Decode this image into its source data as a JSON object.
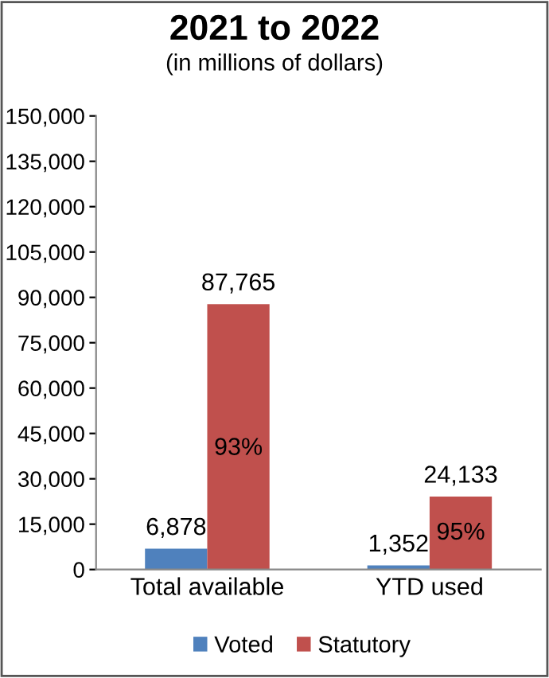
{
  "chart_data": {
    "type": "bar",
    "title": "2021 to 2022",
    "subtitle": "(in millions of dollars)",
    "categories": [
      "Total available",
      "YTD used"
    ],
    "series": [
      {
        "name": "Voted",
        "color": "#4f81bd",
        "values": [
          6878,
          1352
        ],
        "value_labels": [
          "6,878",
          "1,352"
        ]
      },
      {
        "name": "Statutory",
        "color": "#c0504d",
        "values": [
          87765,
          24133
        ],
        "value_labels": [
          "87,765",
          "24,133"
        ]
      }
    ],
    "annotations": [
      {
        "text": "93%",
        "x": "Total available",
        "y": 40000
      },
      {
        "text": "95%",
        "x": "YTD used",
        "y": 12000
      }
    ],
    "ylim": [
      0,
      150000
    ],
    "yticks": [
      {
        "value": 0,
        "label": "0"
      },
      {
        "value": 15000,
        "label": "15,000"
      },
      {
        "value": 30000,
        "label": "30,000"
      },
      {
        "value": 45000,
        "label": "45,000"
      },
      {
        "value": 60000,
        "label": "60,000"
      },
      {
        "value": 75000,
        "label": "75,000"
      },
      {
        "value": 90000,
        "label": "90,000"
      },
      {
        "value": 105000,
        "label": "105,000"
      },
      {
        "value": 120000,
        "label": "120,000"
      },
      {
        "value": 135000,
        "label": "135,000"
      },
      {
        "value": 150000,
        "label": "150,000"
      }
    ],
    "grid": false,
    "legend": "bottom"
  }
}
